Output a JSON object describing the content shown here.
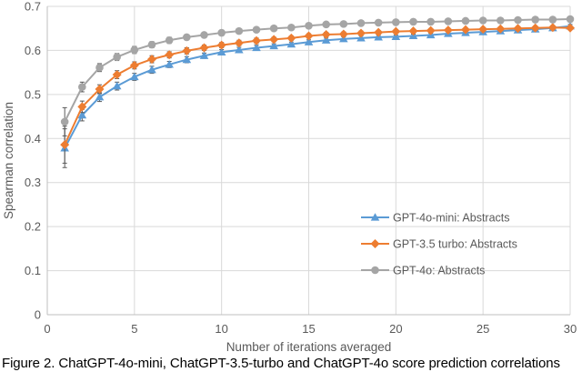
{
  "figure": {
    "caption": "Figure 2. ChatGPT-4o-mini, ChatGPT-3.5-turbo and ChatGPT-4o score prediction correlations"
  },
  "style": {
    "grid_color": "#d9d9d9",
    "axis_color": "#bfbfbf",
    "tick_text_color": "#595959",
    "axis_title_color": "#595959",
    "legend_text_color": "#595959",
    "error_bar_color": "#595959",
    "background": "#ffffff"
  },
  "chart_data": {
    "type": "line",
    "title": "",
    "xlabel": "Number of iterations averaged",
    "ylabel": "Spearman correlation",
    "xlim": [
      0,
      30
    ],
    "ylim": [
      0,
      0.7
    ],
    "grid": true,
    "legend_position": "inside-bottom-right",
    "x_ticks": [
      0,
      5,
      10,
      15,
      20,
      25,
      30
    ],
    "x_tick_labels": [
      "0",
      "5",
      "10",
      "15",
      "20",
      "25",
      "30"
    ],
    "y_ticks": [
      0,
      0.1,
      0.2,
      0.3,
      0.4,
      0.5,
      0.6,
      0.7
    ],
    "y_tick_labels": [
      "0",
      "0.1",
      "0.2",
      "0.3",
      "0.4",
      "0.5",
      "0.6",
      "0.7"
    ],
    "x": [
      1,
      2,
      3,
      4,
      5,
      6,
      7,
      8,
      9,
      10,
      11,
      12,
      13,
      14,
      15,
      16,
      17,
      18,
      19,
      20,
      21,
      22,
      23,
      24,
      25,
      26,
      27,
      28,
      29,
      30
    ],
    "series": [
      {
        "name": "GPT-4o-mini: Abstracts",
        "color": "#5B9BD5",
        "marker": "triangle",
        "values": [
          0.378,
          0.453,
          0.494,
          0.519,
          0.54,
          0.556,
          0.568,
          0.579,
          0.588,
          0.596,
          0.601,
          0.606,
          0.61,
          0.614,
          0.619,
          0.623,
          0.626,
          0.628,
          0.63,
          0.631,
          0.633,
          0.635,
          0.638,
          0.64,
          0.642,
          0.644,
          0.646,
          0.648,
          0.651,
          0.655
        ],
        "errors": [
          0.044,
          0.013,
          0.01,
          0.009,
          0.008,
          0.008,
          0.007,
          0.007,
          0.006,
          0.006,
          0.006,
          0.006,
          0.005,
          0.005,
          0.005,
          0.005,
          0.005,
          0.005,
          0.004,
          0.004,
          0.004,
          0.004,
          0.004,
          0.004,
          0.004,
          0.004,
          0.004,
          0.004,
          0.004,
          0.004
        ]
      },
      {
        "name": "GPT-3.5 turbo: Abstracts",
        "color": "#ED7D31",
        "marker": "diamond",
        "values": [
          0.386,
          0.472,
          0.512,
          0.545,
          0.566,
          0.58,
          0.59,
          0.599,
          0.606,
          0.612,
          0.617,
          0.622,
          0.625,
          0.628,
          0.633,
          0.636,
          0.637,
          0.639,
          0.641,
          0.643,
          0.644,
          0.645,
          0.646,
          0.647,
          0.648,
          0.649,
          0.65,
          0.651,
          0.652,
          0.651
        ],
        "errors": [
          0.042,
          0.013,
          0.01,
          0.009,
          0.008,
          0.008,
          0.007,
          0.007,
          0.006,
          0.006,
          0.006,
          0.006,
          0.005,
          0.005,
          0.005,
          0.005,
          0.005,
          0.005,
          0.004,
          0.004,
          0.004,
          0.004,
          0.004,
          0.004,
          0.004,
          0.004,
          0.004,
          0.004,
          0.004,
          0.004
        ]
      },
      {
        "name": "GPT-4o: Abstracts",
        "color": "#A5A5A5",
        "marker": "circle",
        "values": [
          0.438,
          0.517,
          0.561,
          0.585,
          0.601,
          0.613,
          0.623,
          0.63,
          0.635,
          0.64,
          0.644,
          0.647,
          0.65,
          0.652,
          0.656,
          0.659,
          0.66,
          0.662,
          0.663,
          0.664,
          0.665,
          0.665,
          0.666,
          0.667,
          0.668,
          0.668,
          0.669,
          0.67,
          0.67,
          0.671
        ],
        "errors": [
          0.032,
          0.011,
          0.009,
          0.008,
          0.008,
          0.007,
          0.007,
          0.006,
          0.006,
          0.006,
          0.005,
          0.005,
          0.005,
          0.005,
          0.005,
          0.004,
          0.004,
          0.004,
          0.004,
          0.004,
          0.004,
          0.004,
          0.004,
          0.004,
          0.004,
          0.004,
          0.004,
          0.004,
          0.004,
          0.004
        ]
      }
    ]
  }
}
